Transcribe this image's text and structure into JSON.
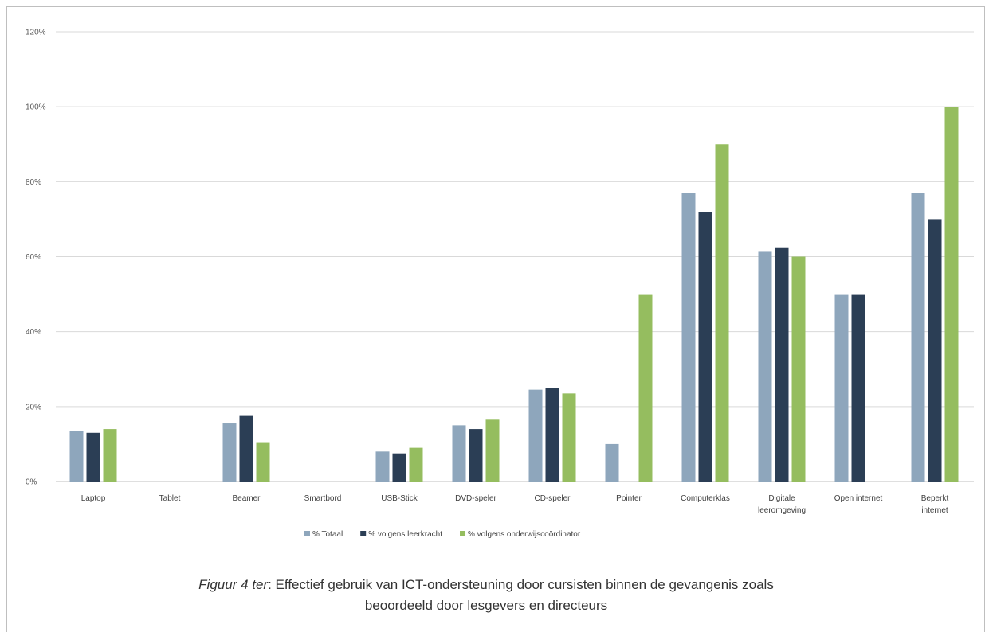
{
  "chart_data": {
    "type": "bar",
    "categories": [
      "Laptop",
      "Tablet",
      "Beamer",
      "Smartbord",
      "USB-Stick",
      "DVD-speler",
      "CD-speler",
      "Pointer",
      "Computerklas",
      "Digitale leeromgeving",
      "Open internet",
      "Beperkt internet"
    ],
    "series": [
      {
        "name": "% Totaal",
        "color": "#8ea6bc",
        "values": [
          13.5,
          0,
          15.5,
          0,
          8,
          15,
          24.5,
          10,
          77,
          61.5,
          50,
          77
        ]
      },
      {
        "name": "% volgens leerkracht",
        "color": "#2b3e55",
        "values": [
          13,
          0,
          17.5,
          0,
          7.5,
          14,
          25,
          0,
          72,
          62.5,
          50,
          70
        ]
      },
      {
        "name": "% volgens onderwijscoördinator",
        "color": "#95bd5f",
        "values": [
          14,
          0,
          10.5,
          0,
          9,
          16.5,
          23.5,
          50,
          90,
          60,
          0,
          100
        ]
      }
    ],
    "y_ticks": [
      "0%",
      "20%",
      "40%",
      "60%",
      "80%",
      "100%",
      "120%"
    ],
    "ylim": [
      0,
      120
    ],
    "grid": true,
    "legend": "bottom",
    "title": "",
    "xlabel": "",
    "ylabel": ""
  },
  "caption": {
    "figure_label": "Figuur 4 ter",
    "line1": ": Effectief gebruik van ICT-ondersteuning door cursisten binnen de gevangenis zoals",
    "line2": "beoordeeld door lesgevers en directeurs"
  }
}
